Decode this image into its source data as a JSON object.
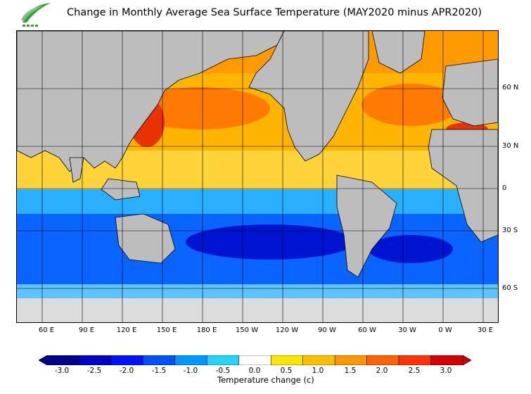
{
  "title": "Change in Monthly Average Sea Surface Temperature (MAY2020 minus APR2020)",
  "map": {
    "lat_labels": [
      "60 N",
      "30 N",
      "0",
      "30 S",
      "60 S"
    ],
    "lon_labels": [
      "60 E",
      "90 E",
      "120 E",
      "150 E",
      "180 E",
      "150 W",
      "120 W",
      "90 W",
      "60 W",
      "30 W",
      "0 W",
      "30 E"
    ],
    "colors": {
      "land": "#bdbdbd",
      "ice": "#dcdcdc",
      "grid": "#000000"
    }
  },
  "colorbar": {
    "title": "Temperature change  (c)",
    "ticks": [
      "-3.0",
      "-2.5",
      "-2.0",
      "-1.5",
      "-1.0",
      "-0.5",
      "0.0",
      "0.5",
      "1.0",
      "1.5",
      "2.0",
      "2.5",
      "3.0"
    ],
    "colors": [
      "#00008c",
      "#0000c8",
      "#0014ff",
      "#0050ff",
      "#0096ff",
      "#28d2ff",
      "#ffffff",
      "#ffe600",
      "#ffbe00",
      "#ff9600",
      "#ff6400",
      "#ff3200",
      "#d20000"
    ]
  }
}
